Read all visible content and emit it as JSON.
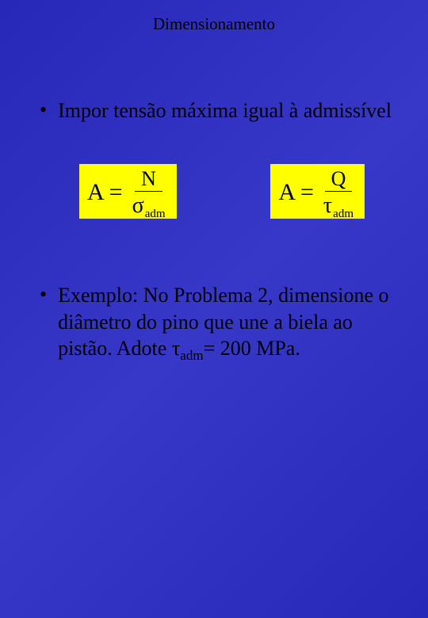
{
  "slide": {
    "background_gradient": [
      "#2828b8",
      "#3838c8",
      "#2828b8"
    ],
    "title": "Dimensionamento",
    "title_color": "#000000",
    "title_fontsize": 21,
    "bullet1": "Impor tensão máxima igual à admissível",
    "bullet2_part1": "Exemplo: No Problema 2, dimensione o diâmetro do pino que une a biela ao pistão. Adote ",
    "bullet2_tau": "τ",
    "bullet2_sub": "adm",
    "bullet2_part2": "= 200 MPa.",
    "text_color": "#000000",
    "body_fontsize": 26
  },
  "formula1": {
    "box_bg": "#ffff00",
    "lhs": "A",
    "eq": "=",
    "numerator": "N",
    "denom_symbol": "σ",
    "denom_sub": "adm"
  },
  "formula2": {
    "box_bg": "#ffff00",
    "lhs": "A",
    "eq": "=",
    "numerator": "Q",
    "denom_symbol": "τ",
    "denom_sub": "adm"
  }
}
